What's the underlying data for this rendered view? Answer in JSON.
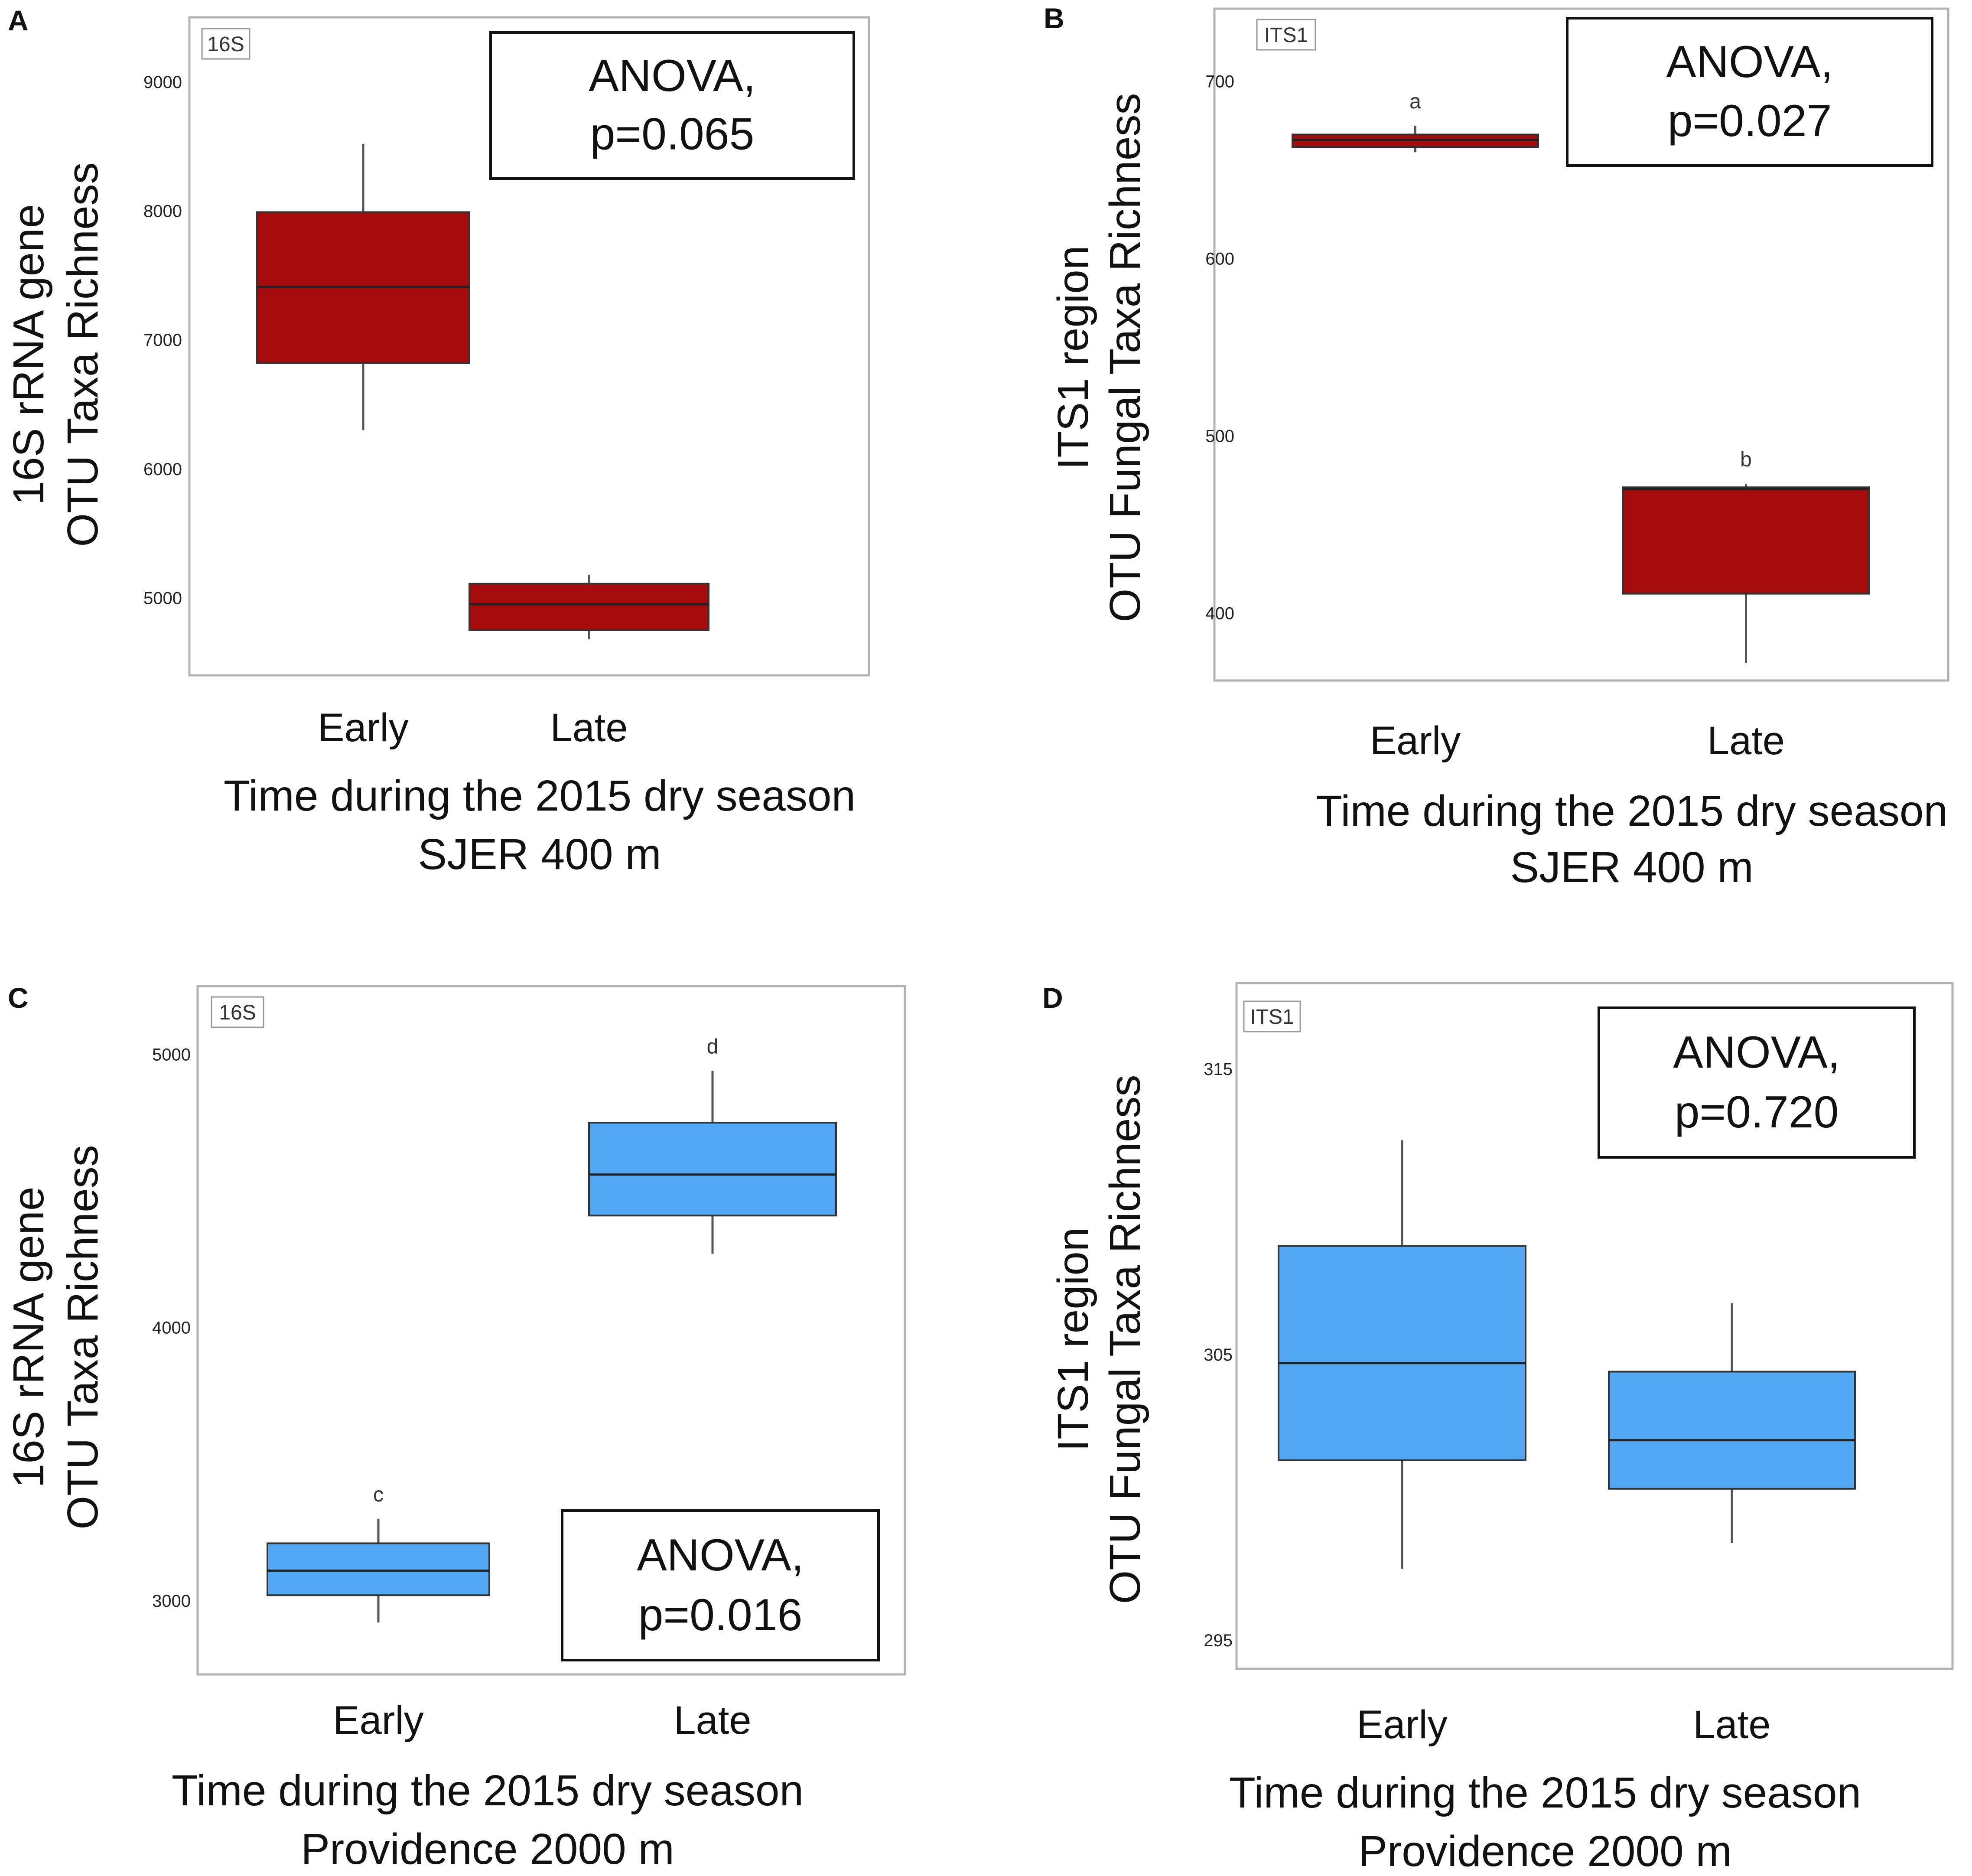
{
  "chart_data": [
    {
      "type": "box",
      "panel": "A",
      "tag": "16S",
      "ylabel": [
        "16S rRNA gene",
        "OTU Taxa Richness"
      ],
      "xlabel": [
        "Time during the 2015 dry season",
        "SJER 400 m"
      ],
      "categories": [
        "Early",
        "Late"
      ],
      "ylim": [
        4400,
        9500
      ],
      "yticks": [
        5000,
        6000,
        7000,
        8000,
        9000
      ],
      "color": "#a50b0b",
      "boxes": [
        {
          "category": "Early",
          "whisker_low": 6300,
          "q1": 6820,
          "median": 7410,
          "q3": 7990,
          "whisker_high": 8520
        },
        {
          "category": "Late",
          "whisker_low": 4680,
          "q1": 4750,
          "median": 4950,
          "q3": 5110,
          "whisker_high": 5180
        }
      ],
      "letters": [],
      "anova": [
        "ANOVA,",
        "p=0.065"
      ]
    },
    {
      "type": "box",
      "panel": "B",
      "tag": "ITS1",
      "ylabel": [
        "ITS1 region",
        "OTU Fungal Taxa Richness"
      ],
      "xlabel": [
        "Time during the 2015 dry season",
        "SJER 400 m"
      ],
      "categories": [
        "Early",
        "Late"
      ],
      "ylim": [
        362,
        741
      ],
      "yticks": [
        400,
        500,
        600,
        700
      ],
      "color": "#a50b0b",
      "boxes": [
        {
          "category": "Early",
          "whisker_low": 660,
          "q1": 663,
          "median": 667,
          "q3": 670,
          "whisker_high": 675
        },
        {
          "category": "Late",
          "whisker_low": 372,
          "q1": 411,
          "median": 470,
          "q3": 471,
          "whisker_high": 473
        }
      ],
      "letters": [
        "a",
        "b"
      ],
      "anova": [
        "ANOVA,",
        "p=0.027"
      ]
    },
    {
      "type": "box",
      "panel": "C",
      "tag": "16S",
      "ylabel": [
        "16S rRNA gene",
        "OTU Taxa Richness"
      ],
      "xlabel": [
        "Time during the 2015 dry season",
        "Providence 2000 m"
      ],
      "categories": [
        "Early",
        "Late"
      ],
      "ylim": [
        2730,
        5250
      ],
      "yticks": [
        3000,
        4000,
        5000
      ],
      "color": "#52a8f3",
      "boxes": [
        {
          "category": "Early",
          "whisker_low": 2920,
          "q1": 3020,
          "median": 3110,
          "q3": 3210,
          "whisker_high": 3300
        },
        {
          "category": "Late",
          "whisker_low": 4270,
          "q1": 4410,
          "median": 4560,
          "q3": 4750,
          "whisker_high": 4940
        }
      ],
      "letters": [
        "c",
        "d"
      ],
      "anova": [
        "ANOVA,",
        "p=0.016"
      ]
    },
    {
      "type": "box",
      "panel": "D",
      "tag": "ITS1",
      "ylabel": [
        "ITS1 region",
        "OTU Fungal Taxa Richness"
      ],
      "xlabel": [
        "Time during the 2015 dry season",
        "Providence 2000 m"
      ],
      "categories": [
        "Early",
        "Late"
      ],
      "ylim": [
        294,
        318
      ],
      "yticks": [
        295,
        305,
        315
      ],
      "color": "#52a8f3",
      "boxes": [
        {
          "category": "Early",
          "whisker_low": 297.5,
          "q1": 301.3,
          "median": 304.7,
          "q3": 308.8,
          "whisker_high": 312.5
        },
        {
          "category": "Late",
          "whisker_low": 298.4,
          "q1": 300.3,
          "median": 302.0,
          "q3": 304.4,
          "whisker_high": 306.8
        }
      ],
      "letters": [],
      "anova": [
        "ANOVA,",
        "p=0.720"
      ]
    }
  ]
}
